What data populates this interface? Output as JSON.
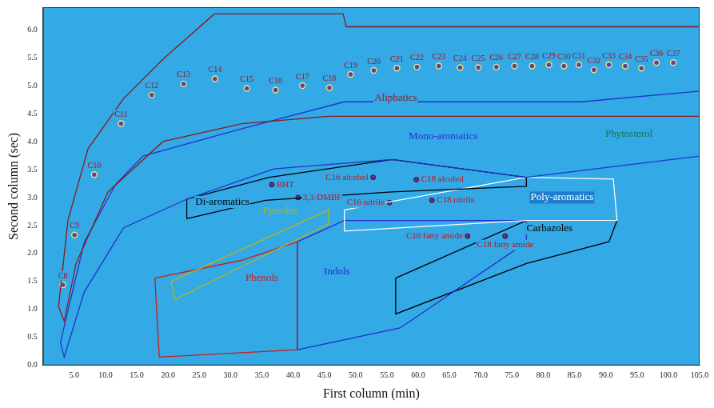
{
  "chart_data": {
    "type": "scatter",
    "x_label": "First column (min)",
    "y_label": "Second column (sec)",
    "xlim": [
      0,
      105
    ],
    "xticks": [
      {
        "value": 5,
        "label": "5.0"
      },
      {
        "value": 10,
        "label": "10.0"
      },
      {
        "value": 15,
        "label": "15.0"
      },
      {
        "value": 20,
        "label": "20.0"
      },
      {
        "value": 25,
        "label": "25.0"
      },
      {
        "value": 30,
        "label": "30.0"
      },
      {
        "value": 35,
        "label": "35.0"
      },
      {
        "value": 40,
        "label": "40.0"
      },
      {
        "value": 45,
        "label": "45.0"
      },
      {
        "value": 50,
        "label": "50.0"
      },
      {
        "value": 55,
        "label": "55.0"
      },
      {
        "value": 60,
        "label": "60.0"
      },
      {
        "value": 65,
        "label": "65.0"
      },
      {
        "value": 70,
        "label": "70.0"
      },
      {
        "value": 75,
        "label": "75.0"
      },
      {
        "value": 80,
        "label": "80.0"
      },
      {
        "value": 85,
        "label": "85.0"
      },
      {
        "value": 90,
        "label": "90.0"
      },
      {
        "value": 95,
        "label": "95.0"
      },
      {
        "value": 100,
        "label": "100.0"
      },
      {
        "value": 105,
        "label": "105.0"
      }
    ],
    "ylim": [
      0,
      6.4
    ],
    "yticks": [
      {
        "value": 0,
        "label": "0.0"
      },
      0.5,
      {
        "value": 1,
        "label": "1.0"
      },
      1.5,
      {
        "value": 2,
        "label": "2.0"
      },
      2.5,
      {
        "value": 3,
        "label": "3.0"
      },
      3.5,
      {
        "value": 4,
        "label": "4.0"
      },
      4.5,
      {
        "value": 5,
        "label": "5.0"
      },
      5.5,
      {
        "value": 6,
        "label": "6.0"
      }
    ],
    "grid": false,
    "peaks": [
      {
        "label": "C8",
        "x": 3.2,
        "y": 1.44
      },
      {
        "label": "C9",
        "x": 5.05,
        "y": 2.33
      },
      {
        "label": "C10",
        "x": 8.2,
        "y": 3.41
      },
      {
        "label": "C11",
        "x": 12.5,
        "y": 4.32
      },
      {
        "label": "C12",
        "x": 17.4,
        "y": 4.83
      },
      {
        "label": "C13",
        "x": 22.5,
        "y": 5.03
      },
      {
        "label": "C14",
        "x": 27.5,
        "y": 5.12
      },
      {
        "label": "C15",
        "x": 32.6,
        "y": 4.95
      },
      {
        "label": "C16",
        "x": 37.2,
        "y": 4.92
      },
      {
        "label": "C17",
        "x": 41.5,
        "y": 5.0
      },
      {
        "label": "C18",
        "x": 45.8,
        "y": 4.96
      },
      {
        "label": "C19",
        "x": 49.2,
        "y": 5.2
      },
      {
        "label": "C20",
        "x": 52.9,
        "y": 5.27
      },
      {
        "label": "C21",
        "x": 56.6,
        "y": 5.31
      },
      {
        "label": "C22",
        "x": 59.8,
        "y": 5.33
      },
      {
        "label": "C23",
        "x": 63.3,
        "y": 5.35
      },
      {
        "label": "C24",
        "x": 66.7,
        "y": 5.32
      },
      {
        "label": "C25",
        "x": 69.6,
        "y": 5.32
      },
      {
        "label": "C26",
        "x": 72.5,
        "y": 5.33
      },
      {
        "label": "C27",
        "x": 75.4,
        "y": 5.35
      },
      {
        "label": "C28",
        "x": 78.2,
        "y": 5.35
      },
      {
        "label": "C29",
        "x": 80.9,
        "y": 5.37
      },
      {
        "label": "C30",
        "x": 83.3,
        "y": 5.35
      },
      {
        "label": "C31",
        "x": 85.7,
        "y": 5.37
      },
      {
        "label": "C32",
        "x": 88.1,
        "y": 5.28
      },
      {
        "label": "C33",
        "x": 90.5,
        "y": 5.37
      },
      {
        "label": "C34",
        "x": 93.1,
        "y": 5.35
      },
      {
        "label": "C35",
        "x": 95.7,
        "y": 5.31
      },
      {
        "label": "C36",
        "x": 98.1,
        "y": 5.41
      },
      {
        "label": "C37",
        "x": 100.8,
        "y": 5.41
      }
    ],
    "compounds": [
      {
        "label": "BHT",
        "x": 36.6,
        "y": 3.23
      },
      {
        "label": "3,3-DMBF",
        "x": 40.8,
        "y": 3.0
      },
      {
        "label": "C16 alcohol",
        "x": 52.8,
        "y": 3.36
      },
      {
        "label": "C18 alcohol",
        "x": 59.7,
        "y": 3.32
      },
      {
        "label": "C16 nitrile",
        "x": 55.4,
        "y": 2.91
      },
      {
        "label": "C18 nitrile",
        "x": 62.2,
        "y": 2.95
      },
      {
        "label": "C16 fatty amide",
        "x": 67.9,
        "y": 2.31
      },
      {
        "label": "C18 fatty amide",
        "x": 73.9,
        "y": 2.31
      }
    ],
    "regions": [
      {
        "name": "Aliphatics",
        "color": "#8b1a1a",
        "label_x": 56.4,
        "label_y": 4.77,
        "x": [
          2.5,
          4.0,
          7.2,
          12.9,
          19.2,
          27.4,
          48.0,
          48.5,
          105,
          105,
          86.1,
          45.7,
          31.8,
          19.2,
          10.4,
          5.3,
          3.4
        ],
        "y": [
          1.05,
          2.59,
          3.87,
          4.77,
          5.47,
          6.28,
          6.28,
          6.05,
          6.05,
          4.45,
          4.45,
          4.45,
          4.32,
          4.0,
          3.1,
          1.82,
          0.79
        ]
      },
      {
        "name": "Mono-aromatics",
        "color": "#2233cc",
        "label_x": 64,
        "label_y": 4.09,
        "x": [
          2.8,
          6.6,
          11.6,
          16,
          31.8,
          48.2,
          86.1,
          105,
          105,
          77.3,
          55.8,
          36.9,
          23,
          12.9,
          6.6,
          3.4
        ],
        "y": [
          0.41,
          2.2,
          3.23,
          3.74,
          4.23,
          4.71,
          4.71,
          4.9,
          3.74,
          3.36,
          3.68,
          3.51,
          2.97,
          2.46,
          1.31,
          0.15
        ]
      },
      {
        "name": "Di-aromatics",
        "color": "#000000",
        "label_x": 28.7,
        "label_y": 2.92,
        "x": [
          23,
          23,
          36.2,
          55.8,
          77.3,
          77.3,
          55.8,
          35.6
        ],
        "y": [
          2.62,
          2.97,
          3.36,
          3.68,
          3.36,
          3.2,
          3.1,
          2.95
        ]
      },
      {
        "name": "Poly-aromatics",
        "color": "#ffffff",
        "label_x": 83,
        "label_y": 3.0,
        "x": [
          48.2,
          77.3,
          91.2,
          91.8,
          77.3,
          48.2
        ],
        "y": [
          2.78,
          3.36,
          3.33,
          2.59,
          2.59,
          2.4
        ]
      },
      {
        "name": "Pyrroles",
        "color": "#b5b51a",
        "label_x": 37.9,
        "label_y": 2.76,
        "x": [
          20.5,
          45.7,
          45.7,
          21.1
        ],
        "y": [
          1.5,
          2.78,
          2.53,
          1.18
        ]
      },
      {
        "name": "Phenols",
        "color": "#d01a1a",
        "label_x": 35,
        "label_y": 1.56,
        "x": [
          17.9,
          31.8,
          40.7,
          40.7,
          18.6
        ],
        "y": [
          1.56,
          1.88,
          2.21,
          0.28,
          0.15
        ]
      },
      {
        "name": "Indols",
        "color": "#2a2ad0",
        "label_x": 47,
        "label_y": 1.67,
        "x": [
          40.7,
          48.2,
          77.3,
          77.3,
          57.1,
          40.7
        ],
        "y": [
          2.21,
          2.59,
          2.59,
          2.2,
          0.67,
          0.28
        ]
      },
      {
        "name": "Carbazoles",
        "color": "#000000",
        "label_x": 81,
        "label_y": 2.44,
        "x": [
          56.4,
          77.3,
          91.8,
          90.5,
          77.3,
          56.4
        ],
        "y": [
          1.56,
          2.59,
          2.59,
          2.21,
          1.82,
          0.92
        ]
      }
    ],
    "annotations": [
      {
        "text": "Phytosterol",
        "x": 93.7,
        "y": 4.13,
        "color": "#17705a"
      }
    ]
  }
}
